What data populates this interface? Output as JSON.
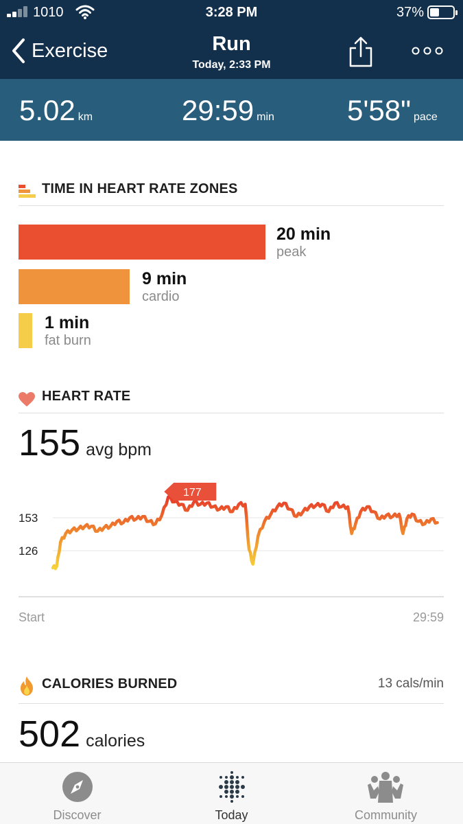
{
  "status_bar": {
    "carrier": "1010",
    "time": "3:28 PM",
    "battery_percent": "37%",
    "battery_level": 0.37
  },
  "header": {
    "back_label": "Exercise",
    "title": "Run",
    "subtitle": "Today, 2:33 PM",
    "icons": [
      "chevron-left-icon",
      "share-icon",
      "more-icon"
    ]
  },
  "stats": {
    "distance": {
      "value": "5.02",
      "unit": "km"
    },
    "duration": {
      "value": "29:59",
      "unit": "min"
    },
    "pace": {
      "value": "5'58\"",
      "unit": "pace"
    }
  },
  "zones": {
    "heading": "TIME IN HEART RATE ZONES",
    "items": [
      {
        "value": "20 min",
        "label": "peak",
        "minutes": 20,
        "color": "#ea5030"
      },
      {
        "value": "9 min",
        "label": "cardio",
        "minutes": 9,
        "color": "#ef933c"
      },
      {
        "value": "1 min",
        "label": "fat burn",
        "minutes": 1,
        "color": "#f6cd48"
      }
    ]
  },
  "heart_rate": {
    "heading": "HEART RATE",
    "avg_value": "155",
    "avg_suffix": "avg bpm"
  },
  "chart_data": {
    "type": "line",
    "title": "",
    "xlabel": "",
    "ylabel": "",
    "x_tick_labels": [
      "Start",
      "29:59"
    ],
    "y_ticks": [
      126,
      153
    ],
    "ylim": [
      108,
      177
    ],
    "peak_label": "177",
    "series": [
      {
        "x": [
          0,
          0.3,
          0.6,
          1,
          1.5,
          2,
          2.5,
          3,
          3.5,
          4,
          4.5,
          5,
          5.5,
          6,
          6.5,
          7,
          7.5,
          8,
          8.5,
          9,
          9.5,
          10,
          10.5,
          11,
          11.5,
          12,
          12.5,
          13,
          13.5,
          14,
          14.5,
          15,
          15.3,
          15.6,
          16,
          16.5,
          17,
          17.5,
          18,
          18.5,
          19,
          19.5,
          20,
          20.5,
          21,
          21.5,
          22,
          22.5,
          23,
          23.3,
          23.6,
          24,
          24.5,
          25,
          25.5,
          26,
          26.5,
          27,
          27.3,
          27.6,
          28,
          28.5,
          29,
          29.5,
          29.98
        ],
        "values": [
          112,
          113,
          133,
          140,
          143,
          144,
          146,
          146,
          142,
          145,
          146,
          150,
          149,
          153,
          152,
          154,
          150,
          148,
          155,
          170,
          166,
          164,
          159,
          166,
          164,
          165,
          162,
          160,
          162,
          158,
          164,
          164,
          127,
          115,
          138,
          150,
          156,
          162,
          165,
          160,
          154,
          158,
          162,
          163,
          164,
          158,
          165,
          162,
          162,
          140,
          148,
          158,
          162,
          158,
          152,
          155,
          154,
          156,
          140,
          152,
          156,
          150,
          148,
          152,
          149
        ],
        "color": "#ea5030"
      }
    ]
  },
  "calories": {
    "heading": "CALORIES BURNED",
    "rate": "13 cals/min",
    "value": "502",
    "suffix": "calories"
  },
  "tabbar": {
    "tabs": [
      {
        "label": "Discover",
        "icon": "compass-icon",
        "active": false
      },
      {
        "label": "Today",
        "icon": "dots-grid-icon",
        "active": true
      },
      {
        "label": "Community",
        "icon": "people-icon",
        "active": false
      }
    ]
  }
}
